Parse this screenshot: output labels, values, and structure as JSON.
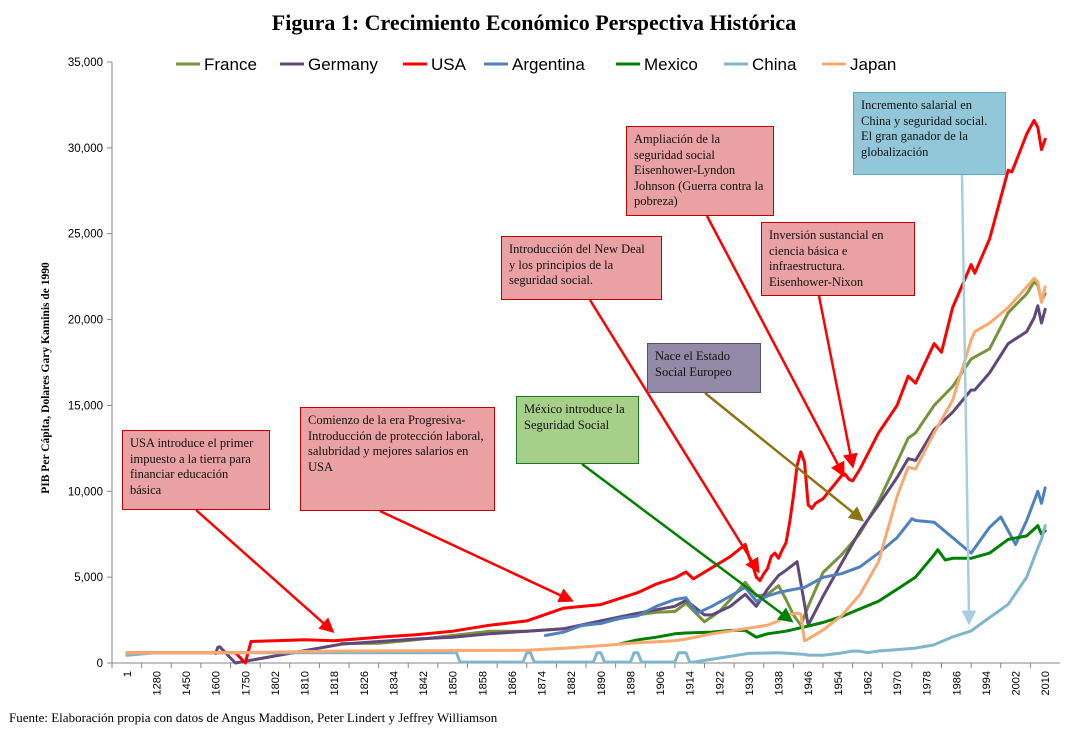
{
  "chart_data": {
    "type": "line",
    "title": "Figura 1: Crecimiento Económico Perspectiva Histórica",
    "ylabel": "PIB Per Cápita, Dolares Gary Kaminis de 1990",
    "xlabel": "",
    "ylim": [
      0,
      35000
    ],
    "yticks": [
      0,
      5000,
      10000,
      15000,
      20000,
      25000,
      30000,
      35000
    ],
    "ytick_labels": [
      "0",
      "5,000",
      "10,000",
      "15,000",
      "20,000",
      "25,000",
      "30,000",
      "35,000"
    ],
    "xtick_labels": [
      "1",
      "1280",
      "1450",
      "1600",
      "1750",
      "1802",
      "1810",
      "1818",
      "1826",
      "1834",
      "1842",
      "1850",
      "1858",
      "1866",
      "1874",
      "1882",
      "1890",
      "1898",
      "1906",
      "1914",
      "1922",
      "1930",
      "1938",
      "1946",
      "1954",
      "1962",
      "1970",
      "1978",
      "1986",
      "1994",
      "2002",
      "2010"
    ],
    "legend_position": "top",
    "grid": false,
    "series": [
      {
        "name": "France",
        "color": "#77933c",
        "x": [
          1820,
          1830,
          1840,
          1850,
          1860,
          1870,
          1880,
          1890,
          1900,
          1905,
          1910,
          1913,
          1918,
          1922,
          1925,
          1929,
          1932,
          1935,
          1938,
          1940,
          1942,
          1944,
          1946,
          1950,
          1955,
          1960,
          1965,
          1970,
          1973,
          1975,
          1980,
          1985,
          1990,
          1995,
          2000,
          2005,
          2007,
          2008,
          2009,
          2010
        ],
        "values": [
          1135,
          1150,
          1350,
          1600,
          1850,
          1850,
          2000,
          2350,
          2800,
          2950,
          3000,
          3480,
          2400,
          3000,
          3700,
          4700,
          3900,
          4000,
          4500,
          3700,
          2800,
          2200,
          3300,
          5270,
          6300,
          7550,
          9400,
          11700,
          13100,
          13400,
          15000,
          16100,
          17700,
          18300,
          20400,
          21500,
          22200,
          22000,
          21100,
          21500
        ]
      },
      {
        "name": "Germany",
        "color": "#60497a",
        "x": [
          1600,
          1610,
          1620,
          1700,
          1820,
          1830,
          1840,
          1850,
          1860,
          1870,
          1880,
          1890,
          1900,
          1910,
          1913,
          1918,
          1920,
          1925,
          1929,
          1932,
          1935,
          1938,
          1940,
          1943,
          1946,
          1950,
          1955,
          1960,
          1965,
          1970,
          1973,
          1975,
          1980,
          1985,
          1990,
          1991,
          1995,
          2000,
          2005,
          2007,
          2008,
          2009,
          2010
        ],
        "values": [
          550,
          900,
          950,
          0,
          1100,
          1250,
          1400,
          1500,
          1700,
          1850,
          2000,
          2450,
          2900,
          3300,
          3650,
          2800,
          2800,
          3300,
          4000,
          3300,
          4300,
          5100,
          5400,
          5900,
          2200,
          3880,
          5800,
          7700,
          9200,
          10800,
          11900,
          11800,
          13600,
          14600,
          15900,
          15900,
          16900,
          18600,
          19300,
          20100,
          20800,
          19800,
          20600
        ]
      },
      {
        "name": "USA",
        "color": "#ff0000",
        "x": [
          1,
          1280,
          1600,
          1700,
          1750,
          1760,
          1802,
          1810,
          1818,
          1830,
          1840,
          1850,
          1860,
          1870,
          1880,
          1890,
          1900,
          1905,
          1910,
          1913,
          1915,
          1920,
          1925,
          1929,
          1930,
          1931,
          1932,
          1933,
          1934,
          1935,
          1936,
          1937,
          1938,
          1939,
          1940,
          1941,
          1942,
          1943,
          1944,
          1945,
          1946,
          1947,
          1948,
          1950,
          1955,
          1956,
          1957,
          1958,
          1960,
          1965,
          1970,
          1973,
          1975,
          1980,
          1982,
          1985,
          1990,
          1991,
          1995,
          2000,
          2001,
          2005,
          2007,
          2008,
          2009,
          2010
        ],
        "values": [
          600,
          600,
          600,
          600,
          0,
          1250,
          1300,
          1350,
          1300,
          1500,
          1650,
          1850,
          2200,
          2450,
          3200,
          3400,
          4100,
          4600,
          4950,
          5300,
          4900,
          5550,
          6200,
          6900,
          6200,
          5700,
          5000,
          4800,
          5200,
          5500,
          6200,
          6400,
          6100,
          6600,
          7000,
          8200,
          9700,
          11500,
          12300,
          11700,
          9200,
          9000,
          9300,
          9560,
          10900,
          11000,
          10700,
          10600,
          11300,
          13400,
          15000,
          16700,
          16300,
          18600,
          18100,
          20700,
          23200,
          22700,
          24700,
          28700,
          28600,
          30800,
          31600,
          31200,
          29900,
          30500
        ]
      },
      {
        "name": "Argentina",
        "color": "#4f81bd",
        "x": [
          1875,
          1880,
          1885,
          1890,
          1895,
          1900,
          1905,
          1910,
          1913,
          1916,
          1920,
          1925,
          1929,
          1932,
          1935,
          1938,
          1940,
          1945,
          1950,
          1955,
          1960,
          1965,
          1970,
          1974,
          1975,
          1980,
          1985,
          1990,
          1995,
          1998,
          2002,
          2005,
          2008,
          2009,
          2010
        ],
        "values": [
          1600,
          1800,
          2200,
          2300,
          2600,
          2750,
          3300,
          3700,
          3800,
          2900,
          3300,
          3900,
          4400,
          3600,
          3900,
          4100,
          4200,
          4400,
          4990,
          5200,
          5600,
          6400,
          7300,
          8400,
          8300,
          8200,
          7300,
          6400,
          7900,
          8500,
          6900,
          8300,
          10000,
          9300,
          10200
        ]
      },
      {
        "name": "Mexico",
        "color": "#008000",
        "x": [
          1895,
          1900,
          1905,
          1910,
          1913,
          1920,
          1925,
          1929,
          1932,
          1935,
          1940,
          1945,
          1950,
          1955,
          1960,
          1965,
          1970,
          1975,
          1980,
          1981,
          1982,
          1983,
          1985,
          1990,
          1995,
          2000,
          2005,
          2007,
          2008,
          2009,
          2010
        ],
        "values": [
          1100,
          1350,
          1500,
          1700,
          1750,
          1800,
          1900,
          1900,
          1500,
          1700,
          1850,
          2100,
          2360,
          2700,
          3150,
          3600,
          4300,
          5000,
          6300,
          6600,
          6300,
          6000,
          6100,
          6100,
          6400,
          7200,
          7400,
          7800,
          8000,
          7500,
          7700
        ]
      },
      {
        "name": "China",
        "color": "#7fb6cc",
        "x": [
          1,
          1280,
          1818,
          1819,
          1820,
          1848,
          1849,
          1850,
          1851,
          1852,
          1869,
          1870,
          1871,
          1872,
          1888,
          1889,
          1890,
          1891,
          1892,
          1898,
          1899,
          1900,
          1901,
          1902,
          1910,
          1911,
          1912,
          1913,
          1914,
          1915,
          1930,
          1938,
          1945,
          1946,
          1950,
          1955,
          1958,
          1960,
          1962,
          1965,
          1970,
          1975,
          1980,
          1985,
          1990,
          1995,
          2000,
          2005,
          2008,
          2009,
          2010
        ],
        "values": [
          450,
          600,
          600,
          600,
          600,
          600,
          600,
          600,
          600,
          50,
          50,
          600,
          600,
          50,
          50,
          600,
          600,
          50,
          50,
          50,
          600,
          600,
          50,
          50,
          50,
          600,
          600,
          600,
          50,
          50,
          560,
          600,
          500,
          460,
          450,
          580,
          700,
          680,
          600,
          700,
          780,
          870,
          1060,
          1520,
          1870,
          2650,
          3420,
          5000,
          6700,
          7200,
          8000
        ]
      },
      {
        "name": "Japan",
        "color": "#f9a870",
        "x": [
          1,
          1280,
          1600,
          1700,
          1820,
          1870,
          1880,
          1890,
          1900,
          1910,
          1913,
          1920,
          1929,
          1935,
          1938,
          1940,
          1943,
          1944,
          1945,
          1946,
          1950,
          1955,
          1960,
          1965,
          1970,
          1973,
          1975,
          1980,
          1985,
          1990,
          1991,
          1995,
          2000,
          2005,
          2007,
          2008,
          2009,
          2010
        ],
        "values": [
          600,
          600,
          600,
          600,
          700,
          740,
          860,
          1010,
          1180,
          1300,
          1390,
          1700,
          2000,
          2200,
          2450,
          2800,
          2900,
          2850,
          1300,
          1400,
          1920,
          2750,
          3990,
          5900,
          9700,
          11400,
          11300,
          13400,
          15300,
          18800,
          19300,
          19800,
          20700,
          21900,
          22400,
          22200,
          21000,
          21900
        ]
      }
    ],
    "annotations": [
      {
        "text": "USA introduce el primer impuesto a la tierra para financiar educación básica",
        "color": "red",
        "points_to": "USA 1818"
      },
      {
        "text": "Comienzo de la era Progresiva- Introducción de protección laboral, salubridad y mejores salarios en USA",
        "color": "red",
        "points_to": "USA 1882"
      },
      {
        "text": "México introduce la Seguridad Social",
        "color": "green",
        "points_to": "Mexico 1943"
      },
      {
        "text": "Introducción del New Deal y los principios de la seguridad social.",
        "color": "red",
        "points_to": "USA 1933"
      },
      {
        "text": "Nace el Estado Social Europeo",
        "color": "purple",
        "points_to": "Europe 1960"
      },
      {
        "text": "Ampliación de la seguridad social Eisenhower-Lyndon Johnson (Guerra contra la pobreza)",
        "color": "red",
        "points_to": "USA 1956"
      },
      {
        "text": "Inversión sustancial en ciencia básica e infraestructura. Eisenhower-Nixon",
        "color": "red",
        "points_to": "USA 1958"
      },
      {
        "text": "Incremento salarial en China y seguridad social. El gran ganador de la globalización",
        "color": "blue",
        "points_to": "China 1990"
      }
    ]
  },
  "source": "Fuente: Elaboración propia con datos de Angus Maddison, Peter Lindert y Jeffrey Williamson"
}
